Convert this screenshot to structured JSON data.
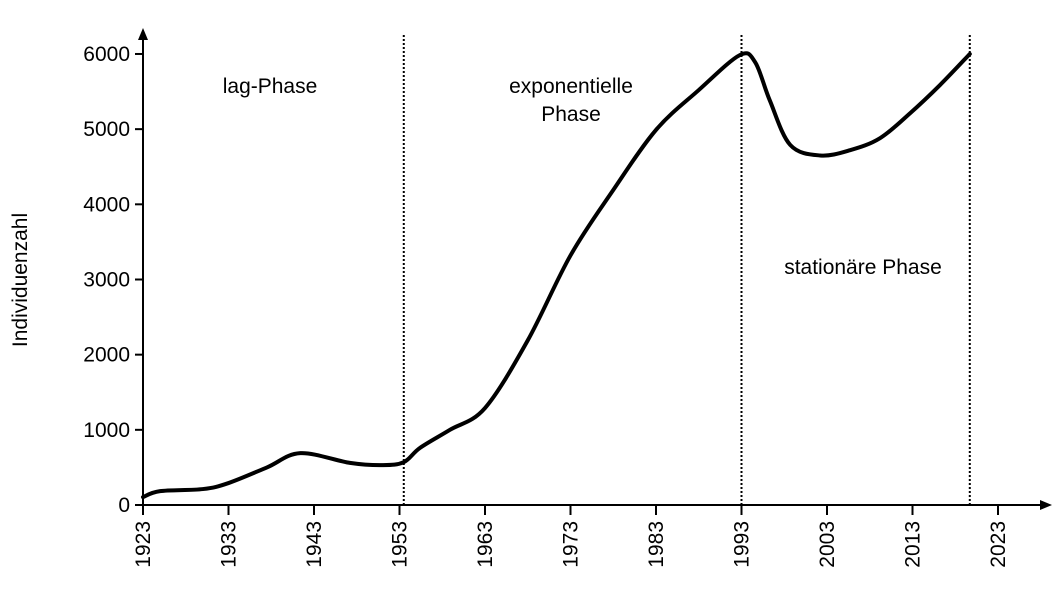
{
  "chart_data": {
    "type": "line",
    "title": "",
    "xlabel": "",
    "ylabel": "Individuenzahl",
    "xlim": [
      1923,
      2023
    ],
    "ylim": [
      0,
      6000
    ],
    "x_ticks": [
      1923,
      1933,
      1943,
      1953,
      1963,
      1973,
      1983,
      1993,
      2003,
      2013,
      2023
    ],
    "y_ticks": [
      0,
      1000,
      2000,
      3000,
      4000,
      5000,
      6000
    ],
    "grid": false,
    "line_color": "#000000",
    "series": [
      {
        "x": [
          1923,
          1925,
          1930,
          1933,
          1937.5,
          1941.4,
          1947.2,
          1951,
          1953.5,
          1955.4,
          1958.9,
          1963,
          1968,
          1973,
          1978,
          1983,
          1988,
          1992.8,
          1994.6,
          1996.3,
          1998.7,
          2002.2,
          2005.7,
          2009.2,
          2012.7,
          2016.2,
          2019.7
        ],
        "y": [
          105,
          185,
          212,
          292,
          500,
          690,
          560,
          530,
          570,
          760,
          1000,
          1290,
          2190,
          3320,
          4190,
          4990,
          5520,
          5985,
          5890,
          5385,
          4790,
          4650,
          4720,
          4880,
          5210,
          5585,
          6000
        ]
      }
    ],
    "phase_boundaries": [
      1953.5,
      1993,
      2019.7
    ],
    "annotations": [
      {
        "text": "lag-Phase",
        "x": 1938,
        "y": 5800
      },
      {
        "lines": [
          "exponentielle",
          "Phase"
        ],
        "x": 1973,
        "y": 5800
      },
      {
        "text": "stationäre Phase",
        "x": 2008,
        "y": 3200
      }
    ]
  }
}
